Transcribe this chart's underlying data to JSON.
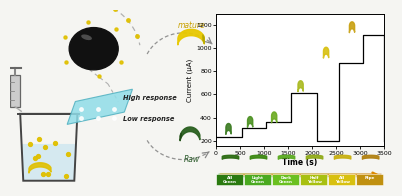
{
  "graph_bg": "#ffffff",
  "fig_bg": "#f5f5f2",
  "step_times": [
    0,
    450,
    550,
    950,
    1050,
    1450,
    1550,
    2050,
    2100,
    2550,
    2600,
    3050,
    3150,
    3500
  ],
  "step_currents": [
    230,
    230,
    310,
    310,
    365,
    365,
    610,
    610,
    200,
    870,
    870,
    1110,
    1110,
    200
  ],
  "xlabel": "Time (s)",
  "ylabel": "Current (μA)",
  "xlim": [
    0,
    3500
  ],
  "ylim": [
    150,
    1300
  ],
  "xticks": [
    0,
    500,
    1000,
    1500,
    2000,
    2500,
    3000,
    3500
  ],
  "yticks": [
    200,
    400,
    600,
    800,
    1000,
    1200
  ],
  "banana_chart_pos": [
    [
      250,
      300
    ],
    [
      700,
      360
    ],
    [
      1200,
      400
    ],
    [
      1750,
      670
    ],
    [
      2280,
      960
    ],
    [
      2820,
      1180
    ]
  ],
  "banana_chart_colors": [
    "#3a7a20",
    "#4a9020",
    "#6aaa20",
    "#aaba20",
    "#d8c010",
    "#c8a010"
  ],
  "ripeness_labels": [
    "All\nGreen",
    "Light\nGreen",
    "Dark\nGreen",
    "Half\nYellow",
    "All\nYellow",
    "Ripe"
  ],
  "ripeness_box_colors": [
    "#2a7a10",
    "#4aaa20",
    "#6ac020",
    "#a8c010",
    "#d8c010",
    "#c09010"
  ],
  "ripeness_banana_colors": [
    "#2a6a10",
    "#3a8810",
    "#5aaa20",
    "#90aa18",
    "#c8b010",
    "#b08010"
  ],
  "arrow_color": "#dd8800"
}
